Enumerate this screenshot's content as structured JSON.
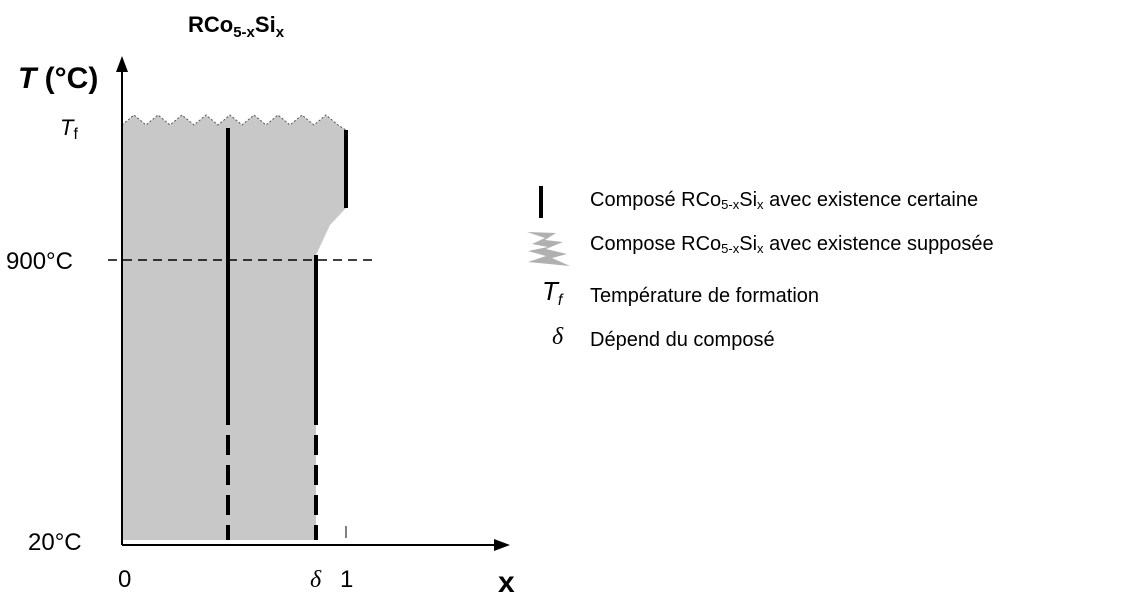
{
  "diagram": {
    "title": {
      "base": "RCo",
      "sub1": "5-x",
      "mid": "Si",
      "sub2": "x"
    },
    "y_axis": {
      "var": "T",
      "unit": " (°C)"
    },
    "x_axis": {
      "label": "x"
    },
    "y_ticks": {
      "tf_base": "T",
      "tf_sub": "f",
      "t900": "900°C",
      "t20": "20°C"
    },
    "x_ticks": {
      "zero": "0",
      "delta": "δ",
      "one": "1"
    },
    "legend": [
      {
        "prefix": "Composé RCo",
        "s1": "5-x",
        "mid": "Si",
        "s2": "x",
        "suffix": " avec existence certaine",
        "symbol": "solid-bar"
      },
      {
        "prefix": "Compose RCo",
        "s1": "5-x",
        "mid": "Si",
        "s2": "x",
        "suffix": " avec existence supposée",
        "symbol": "gray-shape"
      },
      {
        "symbol_text": "T",
        "symbol_sub": "f",
        "text": "Température de formation"
      },
      {
        "symbol_text": "δ",
        "text": "Dépend du composé"
      }
    ],
    "colors": {
      "shade": "#c8c8c8",
      "line": "#000000"
    }
  }
}
